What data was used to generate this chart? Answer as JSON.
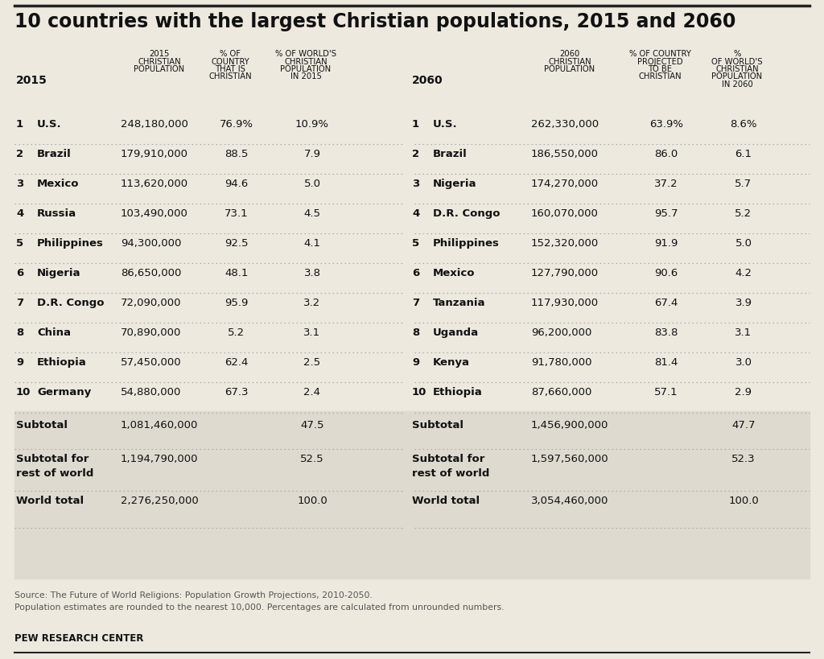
{
  "title": "10 countries with the largest Christian populations, 2015 and 2060",
  "bg_color": "#ede9df",
  "summary_bg": "#dedad0",
  "rows_2015": [
    [
      "1",
      "U.S.",
      "248,180,000",
      "76.9%",
      "10.9%"
    ],
    [
      "2",
      "Brazil",
      "179,910,000",
      "88.5",
      "7.9"
    ],
    [
      "3",
      "Mexico",
      "113,620,000",
      "94.6",
      "5.0"
    ],
    [
      "4",
      "Russia",
      "103,490,000",
      "73.1",
      "4.5"
    ],
    [
      "5",
      "Philippines",
      "94,300,000",
      "92.5",
      "4.1"
    ],
    [
      "6",
      "Nigeria",
      "86,650,000",
      "48.1",
      "3.8"
    ],
    [
      "7",
      "D.R. Congo",
      "72,090,000",
      "95.9",
      "3.2"
    ],
    [
      "8",
      "China",
      "70,890,000",
      "5.2",
      "3.1"
    ],
    [
      "9",
      "Ethiopia",
      "57,450,000",
      "62.4",
      "2.5"
    ],
    [
      "10",
      "Germany",
      "54,880,000",
      "67.3",
      "2.4"
    ]
  ],
  "rows_2060": [
    [
      "1",
      "U.S.",
      "262,330,000",
      "63.9%",
      "8.6%"
    ],
    [
      "2",
      "Brazil",
      "186,550,000",
      "86.0",
      "6.1"
    ],
    [
      "3",
      "Nigeria",
      "174,270,000",
      "37.2",
      "5.7"
    ],
    [
      "4",
      "D.R. Congo",
      "160,070,000",
      "95.7",
      "5.2"
    ],
    [
      "5",
      "Philippines",
      "152,320,000",
      "91.9",
      "5.0"
    ],
    [
      "6",
      "Mexico",
      "127,790,000",
      "90.6",
      "4.2"
    ],
    [
      "7",
      "Tanzania",
      "117,930,000",
      "67.4",
      "3.9"
    ],
    [
      "8",
      "Uganda",
      "96,200,000",
      "83.8",
      "3.1"
    ],
    [
      "9",
      "Kenya",
      "91,780,000",
      "81.4",
      "3.0"
    ],
    [
      "10",
      "Ethiopia",
      "87,660,000",
      "57.1",
      "2.9"
    ]
  ],
  "summary_2015": [
    [
      "Subtotal",
      "1,081,460,000",
      "47.5"
    ],
    [
      "Subtotal for\nrest of world",
      "1,194,790,000",
      "52.5"
    ],
    [
      "World total",
      "2,276,250,000",
      "100.0"
    ]
  ],
  "summary_2060": [
    [
      "Subtotal",
      "1,456,900,000",
      "47.7"
    ],
    [
      "Subtotal for\nrest of world",
      "1,597,560,000",
      "52.3"
    ],
    [
      "World total",
      "3,054,460,000",
      "100.0"
    ]
  ],
  "source_line1": "Source: The Future of World Religions: Population Growth Projections, 2010-2050.",
  "source_line2": "Population estimates are rounded to the nearest 10,000. Percentages are calculated from unrounded numbers.",
  "pew_text": "PEW RESEARCH CENTER"
}
